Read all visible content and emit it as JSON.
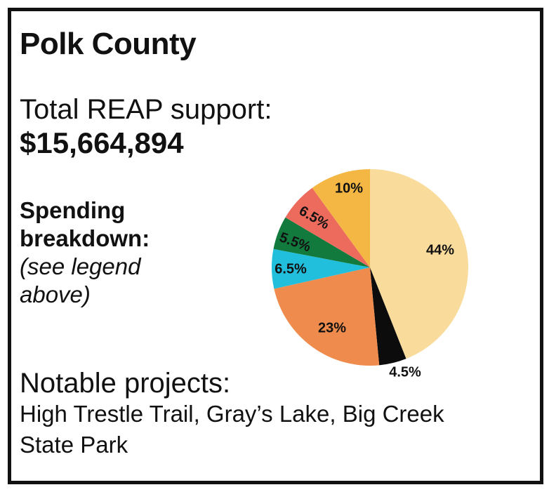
{
  "title": "Polk County",
  "support": {
    "label": "Total REAP support:",
    "value": "$15,664,894"
  },
  "breakdown": {
    "label": "Spending breakdown:",
    "note": "(see legend above)"
  },
  "projects": {
    "label": "Notable projects:",
    "text": "High Trestle Trail, Gray’s Lake, Big Creek State Park"
  },
  "chart_data": {
    "type": "pie",
    "title": "",
    "slices": [
      {
        "label": "44%",
        "value": 44,
        "color": "#f9db9b"
      },
      {
        "label": "4.5%",
        "value": 4.5,
        "color": "#0c0c0c"
      },
      {
        "label": "23%",
        "value": 23,
        "color": "#ef8c4d"
      },
      {
        "label": "6.5%",
        "value": 6.5,
        "color": "#21bfdc"
      },
      {
        "label": "5.5%",
        "value": 5.5,
        "color": "#137a3e"
      },
      {
        "label": "6.5%",
        "value": 6.5,
        "color": "#ec6b5c"
      },
      {
        "label": "10%",
        "value": 10,
        "color": "#f4b744"
      }
    ]
  }
}
